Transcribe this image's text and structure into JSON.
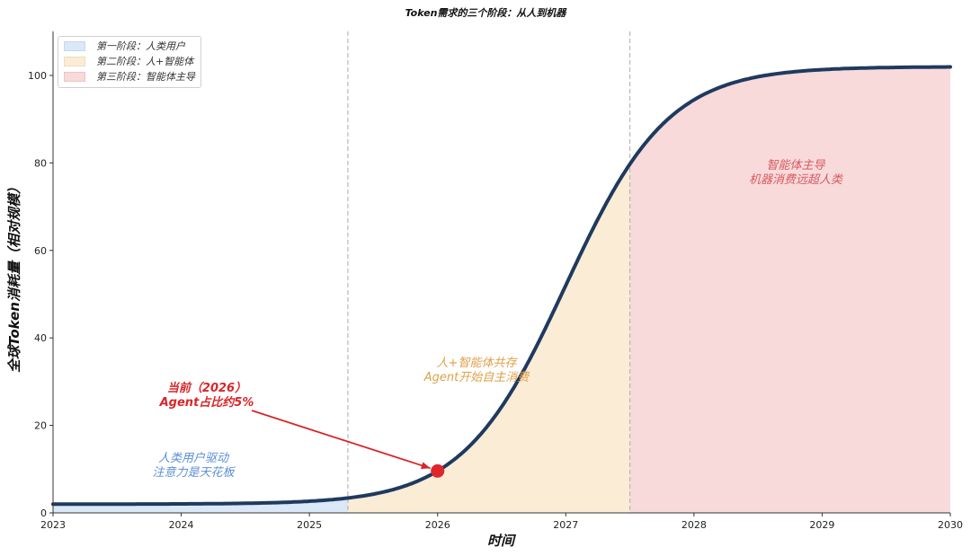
{
  "chart_data": {
    "type": "line",
    "title": "Token需求的三个阶段：从人到机器",
    "xlabel": "时间",
    "ylabel": "全球Token消耗量（相对规模）",
    "xlim": [
      2023,
      2030
    ],
    "ylim": [
      0,
      110
    ],
    "x_ticks": [
      "2023",
      "2024",
      "2025",
      "2026",
      "2027",
      "2028",
      "2029",
      "2030"
    ],
    "y_ticks": [
      "0",
      "20",
      "40",
      "60",
      "80",
      "100"
    ],
    "grid": false,
    "legend_position": "upper left",
    "series": [
      {
        "name": "全球Token消耗量",
        "color": "#1f3a5f",
        "x": [
          2023,
          2023.5,
          2024,
          2024.5,
          2025,
          2025.3,
          2025.5,
          2026,
          2026.25,
          2026.5,
          2026.75,
          2027,
          2027.25,
          2027.5,
          2027.75,
          2028,
          2028.5,
          2029,
          2029.5,
          2030
        ],
        "values": [
          2.0,
          2.0,
          2.1,
          2.2,
          2.6,
          3.4,
          4.3,
          9.6,
          15.3,
          24.2,
          36.8,
          52.0,
          67.2,
          79.7,
          88.7,
          94.4,
          99.9,
          101.6,
          101.9,
          102.0
        ]
      }
    ],
    "phases": [
      {
        "name": "第一阶段：人类用户",
        "x_start": 2023,
        "x_end": 2025.3,
        "color": "#dbe8f8"
      },
      {
        "name": "第二阶段：人+智能体",
        "x_start": 2025.3,
        "x_end": 2027.5,
        "color": "#fbecd6"
      },
      {
        "name": "第三阶段：智能体主导",
        "x_start": 2027.5,
        "x_end": 2030,
        "color": "#f8dadb"
      }
    ],
    "phase_dividers": [
      2025.3,
      2027.5
    ],
    "highlight_point": {
      "x": 2026,
      "y": 9.6,
      "color": "#e0262c"
    },
    "annotations": [
      {
        "text": [
          "当前（2026）",
          "Agent占比约5%"
        ],
        "color": "#d9252a",
        "x": 2024.9,
        "y": 25.5,
        "arrow_to": [
          2026,
          9.6
        ]
      },
      {
        "text": [
          "人类用户驱动",
          "注意力是天花板"
        ],
        "color": "#5b8fd6",
        "x": 2024.1,
        "y": 10.3
      },
      {
        "text": [
          "人+智能体共存",
          "Agent开始自主消费"
        ],
        "color": "#e0a04a",
        "x": 2026.3,
        "y": 32.5
      },
      {
        "text": [
          "智能体主导",
          "机器消费远超人类"
        ],
        "color": "#d95a60",
        "x": 2028.8,
        "y": 77.5
      }
    ]
  }
}
